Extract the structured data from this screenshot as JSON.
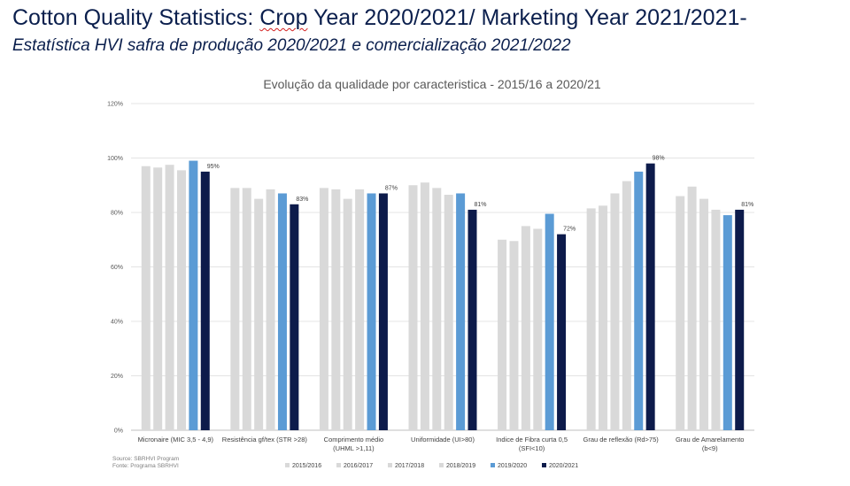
{
  "header": {
    "title_pre": "Cotton Quality Statistics: ",
    "title_squiggle": "Crop",
    "title_post": " Year 2020/2021/ Marketing Year 2021/2021-",
    "subtitle": "Estatística HVI safra de produção 2020/2021  e comercialização 2021/2022"
  },
  "source": {
    "line1": "Source: SBRHVI Program",
    "line2": "Fonte:   Programa SBRHVI"
  },
  "chart_data": {
    "type": "bar",
    "title": "Evolução da qualidade por caracteristica - 2015/16 a 2020/21",
    "ylim": [
      0,
      120
    ],
    "yticks": [
      "0%",
      "20%",
      "40%",
      "60%",
      "80%",
      "100%",
      "120%"
    ],
    "grid": true,
    "legend_position": "bottom",
    "categories": [
      [
        "Micronaire (MIC 3,5 - 4,9)"
      ],
      [
        "Resistência gf/tex (STR >28)"
      ],
      [
        "Comprimento médio",
        "(UHML >1,11)"
      ],
      [
        "Uniformidade (UI>80)"
      ],
      [
        "Indice de Fibra curta 0,5",
        "(SFI<10)"
      ],
      [
        "Grau de reflexão (Rd>75)"
      ],
      [
        "Grau de Amarelamento",
        "(b<9)"
      ]
    ],
    "series": [
      {
        "name": "2015/2016",
        "color": "#d9d9d9",
        "values": [
          97,
          89,
          89,
          90,
          70,
          81.5,
          86
        ]
      },
      {
        "name": "2016/2017",
        "color": "#d9d9d9",
        "values": [
          96.5,
          89,
          88.5,
          91,
          69.5,
          82.5,
          89.5
        ]
      },
      {
        "name": "2017/2018",
        "color": "#d9d9d9",
        "values": [
          97.5,
          85,
          85,
          89,
          75,
          87,
          85
        ]
      },
      {
        "name": "2018/2019",
        "color": "#d9d9d9",
        "values": [
          95.5,
          88.5,
          88.5,
          86.5,
          74,
          91.5,
          81
        ]
      },
      {
        "name": "2019/2020",
        "color": "#5b9bd5",
        "values": [
          99,
          87,
          87,
          87,
          79.5,
          95,
          79
        ]
      },
      {
        "name": "2020/2021",
        "color": "#0d1b4b",
        "values": [
          95,
          83,
          87,
          81,
          72,
          98,
          81
        ]
      }
    ],
    "data_labels": [
      "95%",
      "83%",
      "87%",
      "81%",
      "72%",
      "98%",
      "81%"
    ]
  }
}
